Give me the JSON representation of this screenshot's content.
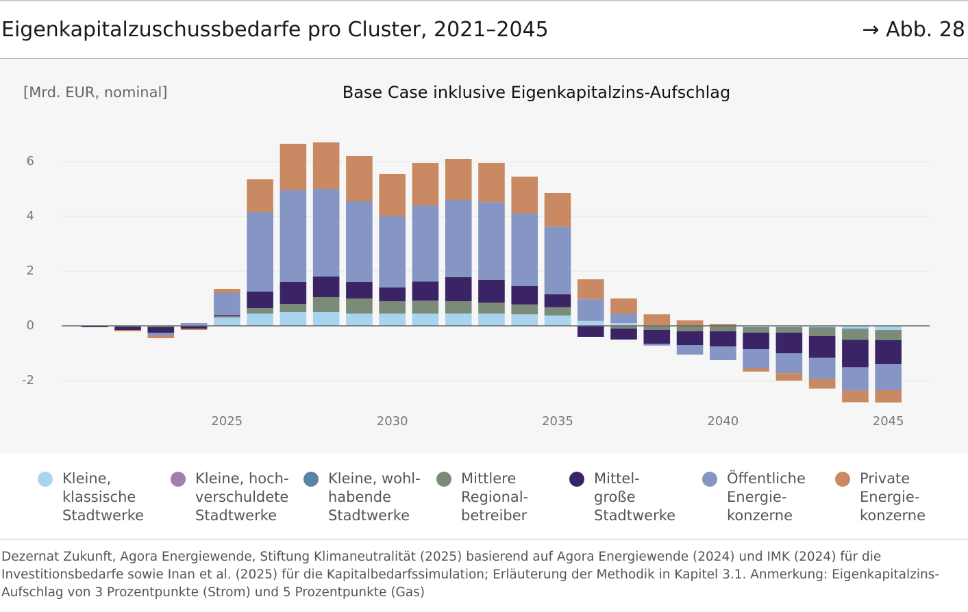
{
  "chart_data": {
    "type": "stacked_bar",
    "title": "Eigenkapitalzuschussbedarfe pro Cluster, 2021–2045",
    "figure_ref": "→ Abb. 28",
    "subtitle": "Base Case inklusive Eigenkapitalzins-Aufschlag",
    "y_unit": "[Mrd. EUR, nominal]",
    "source": "Dezernat Zukunft, Agora Energiewende, Stiftung Klimaneutralität (2025) basierend auf Agora Energiewende (2024) und IMK (2024) für die Investitionsbedarfe sowie Inan et al. (2025) für die Kapitalbedarfssimulation; Erläuterung der Methodik in Kapitel 3.1. Anmerkung: Eigenkapitalzins-Aufschlag von 3 Prozentpunkte (Strom) und 5 Prozentpunkte (Gas)",
    "x": [
      2021,
      2022,
      2023,
      2024,
      2025,
      2026,
      2027,
      2028,
      2029,
      2030,
      2031,
      2032,
      2033,
      2034,
      2035,
      2036,
      2037,
      2038,
      2039,
      2040,
      2041,
      2042,
      2043,
      2044,
      2045
    ],
    "xlim": [
      2020,
      2046.25
    ],
    "xticks": [
      2025,
      2030,
      2035,
      2040,
      2045
    ],
    "ylim": [
      -3.1,
      7.3
    ],
    "yticks": [
      -2,
      0,
      2,
      4,
      6
    ],
    "grid": true,
    "series": [
      {
        "name": "Kleine,\nklassische\nStadtwerke",
        "color": "#a8d4ef",
        "values": [
          0,
          0,
          0,
          0.03,
          0.3,
          0.45,
          0.5,
          0.5,
          0.45,
          0.45,
          0.45,
          0.45,
          0.45,
          0.42,
          0.38,
          0.18,
          0.1,
          0.02,
          0,
          0,
          -0.05,
          -0.05,
          -0.05,
          -0.1,
          -0.15
        ]
      },
      {
        "name": "Kleine, hoch-\nverschuldete\nStadtwerke",
        "color": "#a07fac",
        "values": [
          0,
          0,
          0,
          0,
          0.02,
          0,
          0,
          0,
          0,
          0,
          0,
          0,
          0,
          0,
          0,
          0,
          0,
          0,
          0,
          0,
          0,
          0,
          0,
          0,
          0
        ]
      },
      {
        "name": "Kleine, wohl-\nhabende\nStadtwerke",
        "color": "#5a84a3",
        "values": [
          0,
          0,
          0,
          0,
          0,
          0,
          0,
          0,
          0,
          0,
          0,
          0,
          0,
          0,
          0,
          0,
          0,
          0,
          0,
          0,
          0,
          0,
          -0.02,
          -0.03,
          -0.02
        ]
      },
      {
        "name": "Mittlere\nRegional-\nbetreiber",
        "color": "#7b8b77",
        "values": [
          0,
          -0.03,
          -0.05,
          0,
          0.05,
          0.2,
          0.3,
          0.55,
          0.55,
          0.45,
          0.47,
          0.45,
          0.4,
          0.36,
          0.3,
          0,
          -0.1,
          -0.15,
          -0.2,
          -0.2,
          -0.2,
          -0.2,
          -0.3,
          -0.38,
          -0.35
        ]
      },
      {
        "name": "Mittel-\ngroße\nStadtwerke",
        "color": "#3a2466",
        "values": [
          -0.05,
          -0.12,
          -0.2,
          -0.1,
          0.03,
          0.6,
          0.8,
          0.75,
          0.6,
          0.5,
          0.7,
          0.88,
          0.83,
          0.67,
          0.47,
          -0.4,
          -0.4,
          -0.5,
          -0.5,
          -0.55,
          -0.6,
          -0.75,
          -0.8,
          -1.0,
          -0.88
        ]
      },
      {
        "name": "Öffentliche\nEnergie-\nkonzerne",
        "color": "#8595c4",
        "values": [
          0,
          0,
          -0.1,
          0.07,
          0.8,
          2.9,
          3.35,
          3.2,
          2.95,
          2.6,
          2.78,
          2.82,
          2.84,
          2.65,
          2.47,
          0.79,
          0.35,
          -0.07,
          -0.35,
          -0.5,
          -0.7,
          -0.73,
          -0.77,
          -0.85,
          -0.95
        ]
      },
      {
        "name": "Private\nEnergie-\nkonzerne",
        "color": "#c98a63",
        "values": [
          0,
          -0.05,
          -0.1,
          -0.05,
          0.15,
          1.2,
          1.7,
          1.7,
          1.65,
          1.55,
          1.55,
          1.5,
          1.43,
          1.35,
          1.23,
          0.73,
          0.55,
          0.4,
          0.2,
          0.07,
          -0.12,
          -0.27,
          -0.35,
          -0.43,
          -0.45
        ]
      }
    ]
  }
}
